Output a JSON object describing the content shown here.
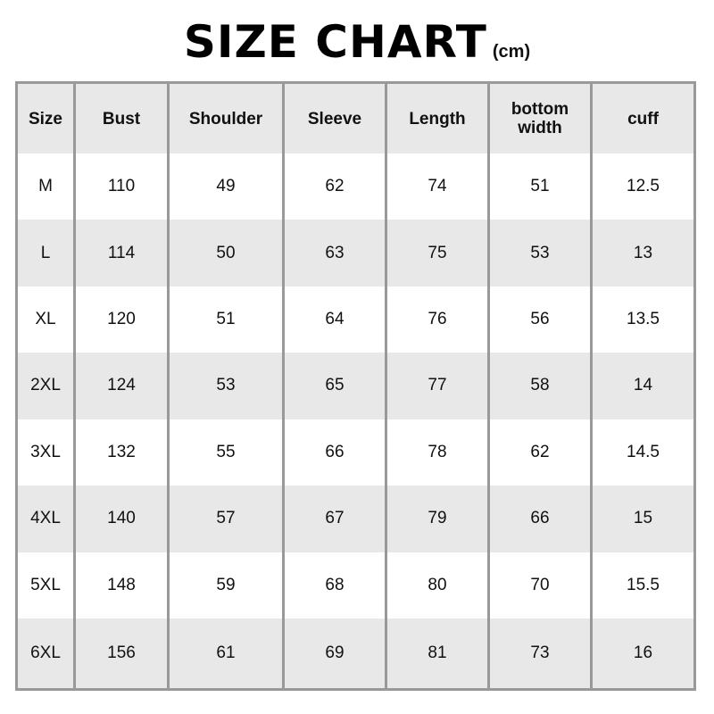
{
  "title": "SIZE CHART",
  "unit": "(cm)",
  "headers": [
    "Size",
    "Bust",
    "Shoulder",
    "Sleeve",
    "Length",
    "bottom width",
    "cuff"
  ],
  "rows": [
    [
      "M",
      "110",
      "49",
      "62",
      "74",
      "51",
      "12.5"
    ],
    [
      "L",
      "114",
      "50",
      "63",
      "75",
      "53",
      "13"
    ],
    [
      "XL",
      "120",
      "51",
      "64",
      "76",
      "56",
      "13.5"
    ],
    [
      "2XL",
      "124",
      "53",
      "65",
      "77",
      "58",
      "14"
    ],
    [
      "3XL",
      "132",
      "55",
      "66",
      "78",
      "62",
      "14.5"
    ],
    [
      "4XL",
      "140",
      "57",
      "67",
      "79",
      "66",
      "15"
    ],
    [
      "5XL",
      "148",
      "59",
      "68",
      "80",
      "70",
      "15.5"
    ],
    [
      "6XL",
      "156",
      "61",
      "69",
      "81",
      "73",
      "16"
    ]
  ],
  "colors": {
    "stripe": "#e8e8e8",
    "border": "#999999"
  }
}
